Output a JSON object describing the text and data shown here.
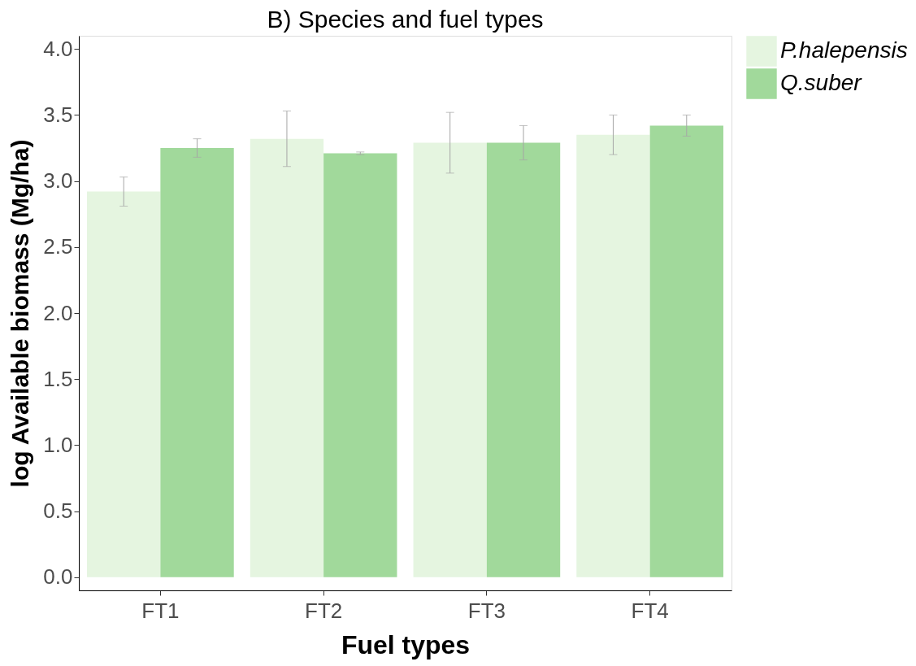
{
  "chart_data": {
    "type": "bar",
    "title": "B) Species and fuel types",
    "xlabel": "Fuel types",
    "ylabel": "log Available biomass (Mg/ha)",
    "categories": [
      "FT1",
      "FT2",
      "FT3",
      "FT4"
    ],
    "series": [
      {
        "name": "P.halepensis",
        "color": "#e5f5e0",
        "values": [
          2.92,
          3.32,
          3.29,
          3.35
        ],
        "errors": [
          0.11,
          0.21,
          0.23,
          0.15
        ]
      },
      {
        "name": "Q.suber",
        "color": "#a1d99b",
        "values": [
          3.25,
          3.21,
          3.29,
          3.42
        ],
        "errors": [
          0.07,
          0.01,
          0.13,
          0.08
        ]
      }
    ],
    "ylim": [
      -0.1,
      4.1
    ],
    "yticks": [
      {
        "value": 0.0,
        "label": "0.0"
      },
      0.5,
      {
        "value": 1.0,
        "label": "1.0"
      },
      1.5,
      {
        "value": 2.0,
        "label": "2.0"
      },
      2.5,
      {
        "value": 3.0,
        "label": "3.0"
      },
      3.5,
      {
        "value": 4.0,
        "label": "4.0"
      }
    ],
    "grid": false,
    "legend": "right"
  }
}
